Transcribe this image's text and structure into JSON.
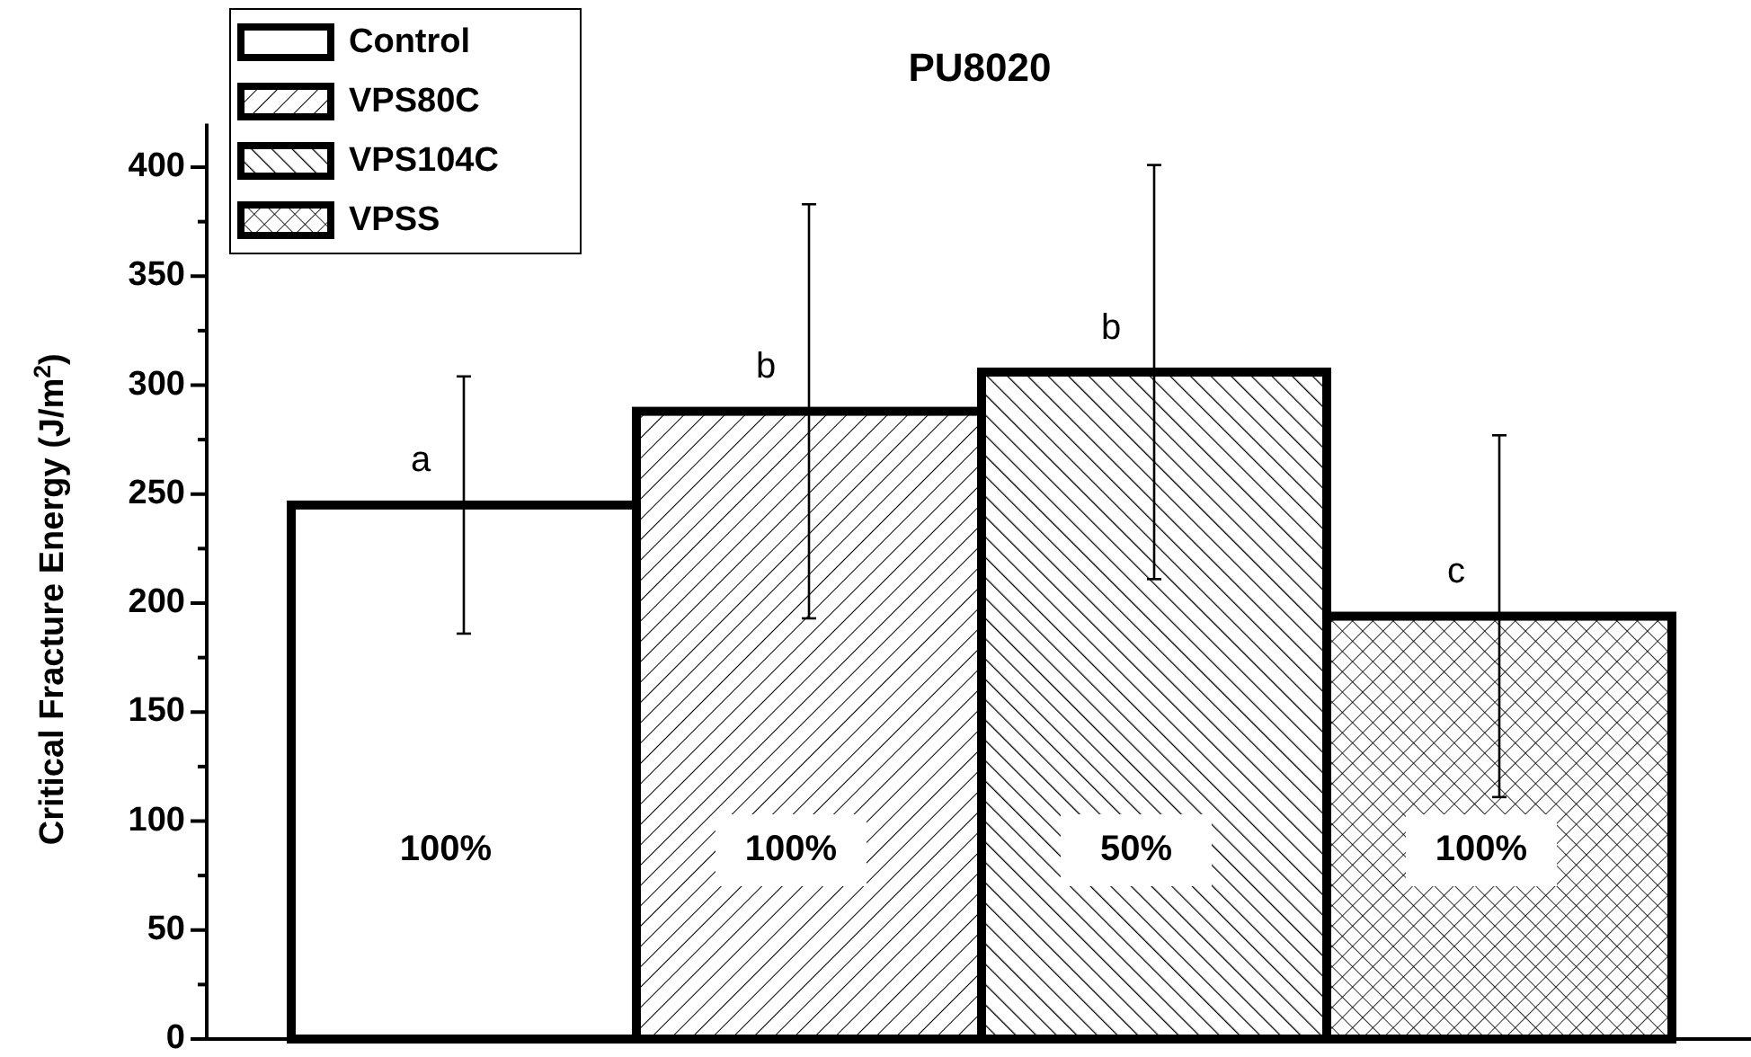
{
  "chart_data": {
    "type": "bar",
    "title": "PU8020",
    "ylabel": "Critical Fracture Energy (J/m$^{2}$)",
    "categories": [
      null,
      null,
      null,
      null
    ],
    "series": [
      {
        "name": "Control",
        "color": "#ffffff",
        "values": [
          245,
          null,
          null,
          null
        ],
        "errors": [
          59,
          null,
          null,
          null
        ]
      },
      {
        "name": "VPS80C",
        "color": "#000000",
        "values": [
          null,
          288,
          null,
          null
        ],
        "errors": [
          null,
          95,
          null,
          null
        ]
      },
      {
        "name": "VPS104C",
        "color": "#000000",
        "values": [
          null,
          null,
          306,
          null
        ],
        "errors": [
          null,
          null,
          95,
          null
        ]
      },
      {
        "name": "VPSS",
        "color": "#000000",
        "values": [
          null,
          null,
          null,
          194
        ],
        "errors": [
          null,
          null,
          null,
          83
        ]
      }
    ],
    "ylim": [
      0,
      420
    ],
    "yticks": [
      0,
      {
        "value": 25,
        "label": null
      },
      50,
      {
        "value": 75,
        "label": null
      },
      100,
      {
        "value": 125,
        "label": null
      },
      150,
      {
        "value": 175,
        "label": null
      },
      200,
      {
        "value": 225,
        "label": null
      },
      250,
      {
        "value": 275,
        "label": null
      },
      300,
      {
        "value": 325,
        "label": null
      },
      350,
      {
        "value": 375,
        "label": null
      },
      400
    ],
    "tick_labels": "y",
    "legend": "top left",
    "annotations": [
      "a",
      "b",
      "b",
      "c",
      "100%",
      "100%",
      "50%",
      "100%"
    ]
  }
}
